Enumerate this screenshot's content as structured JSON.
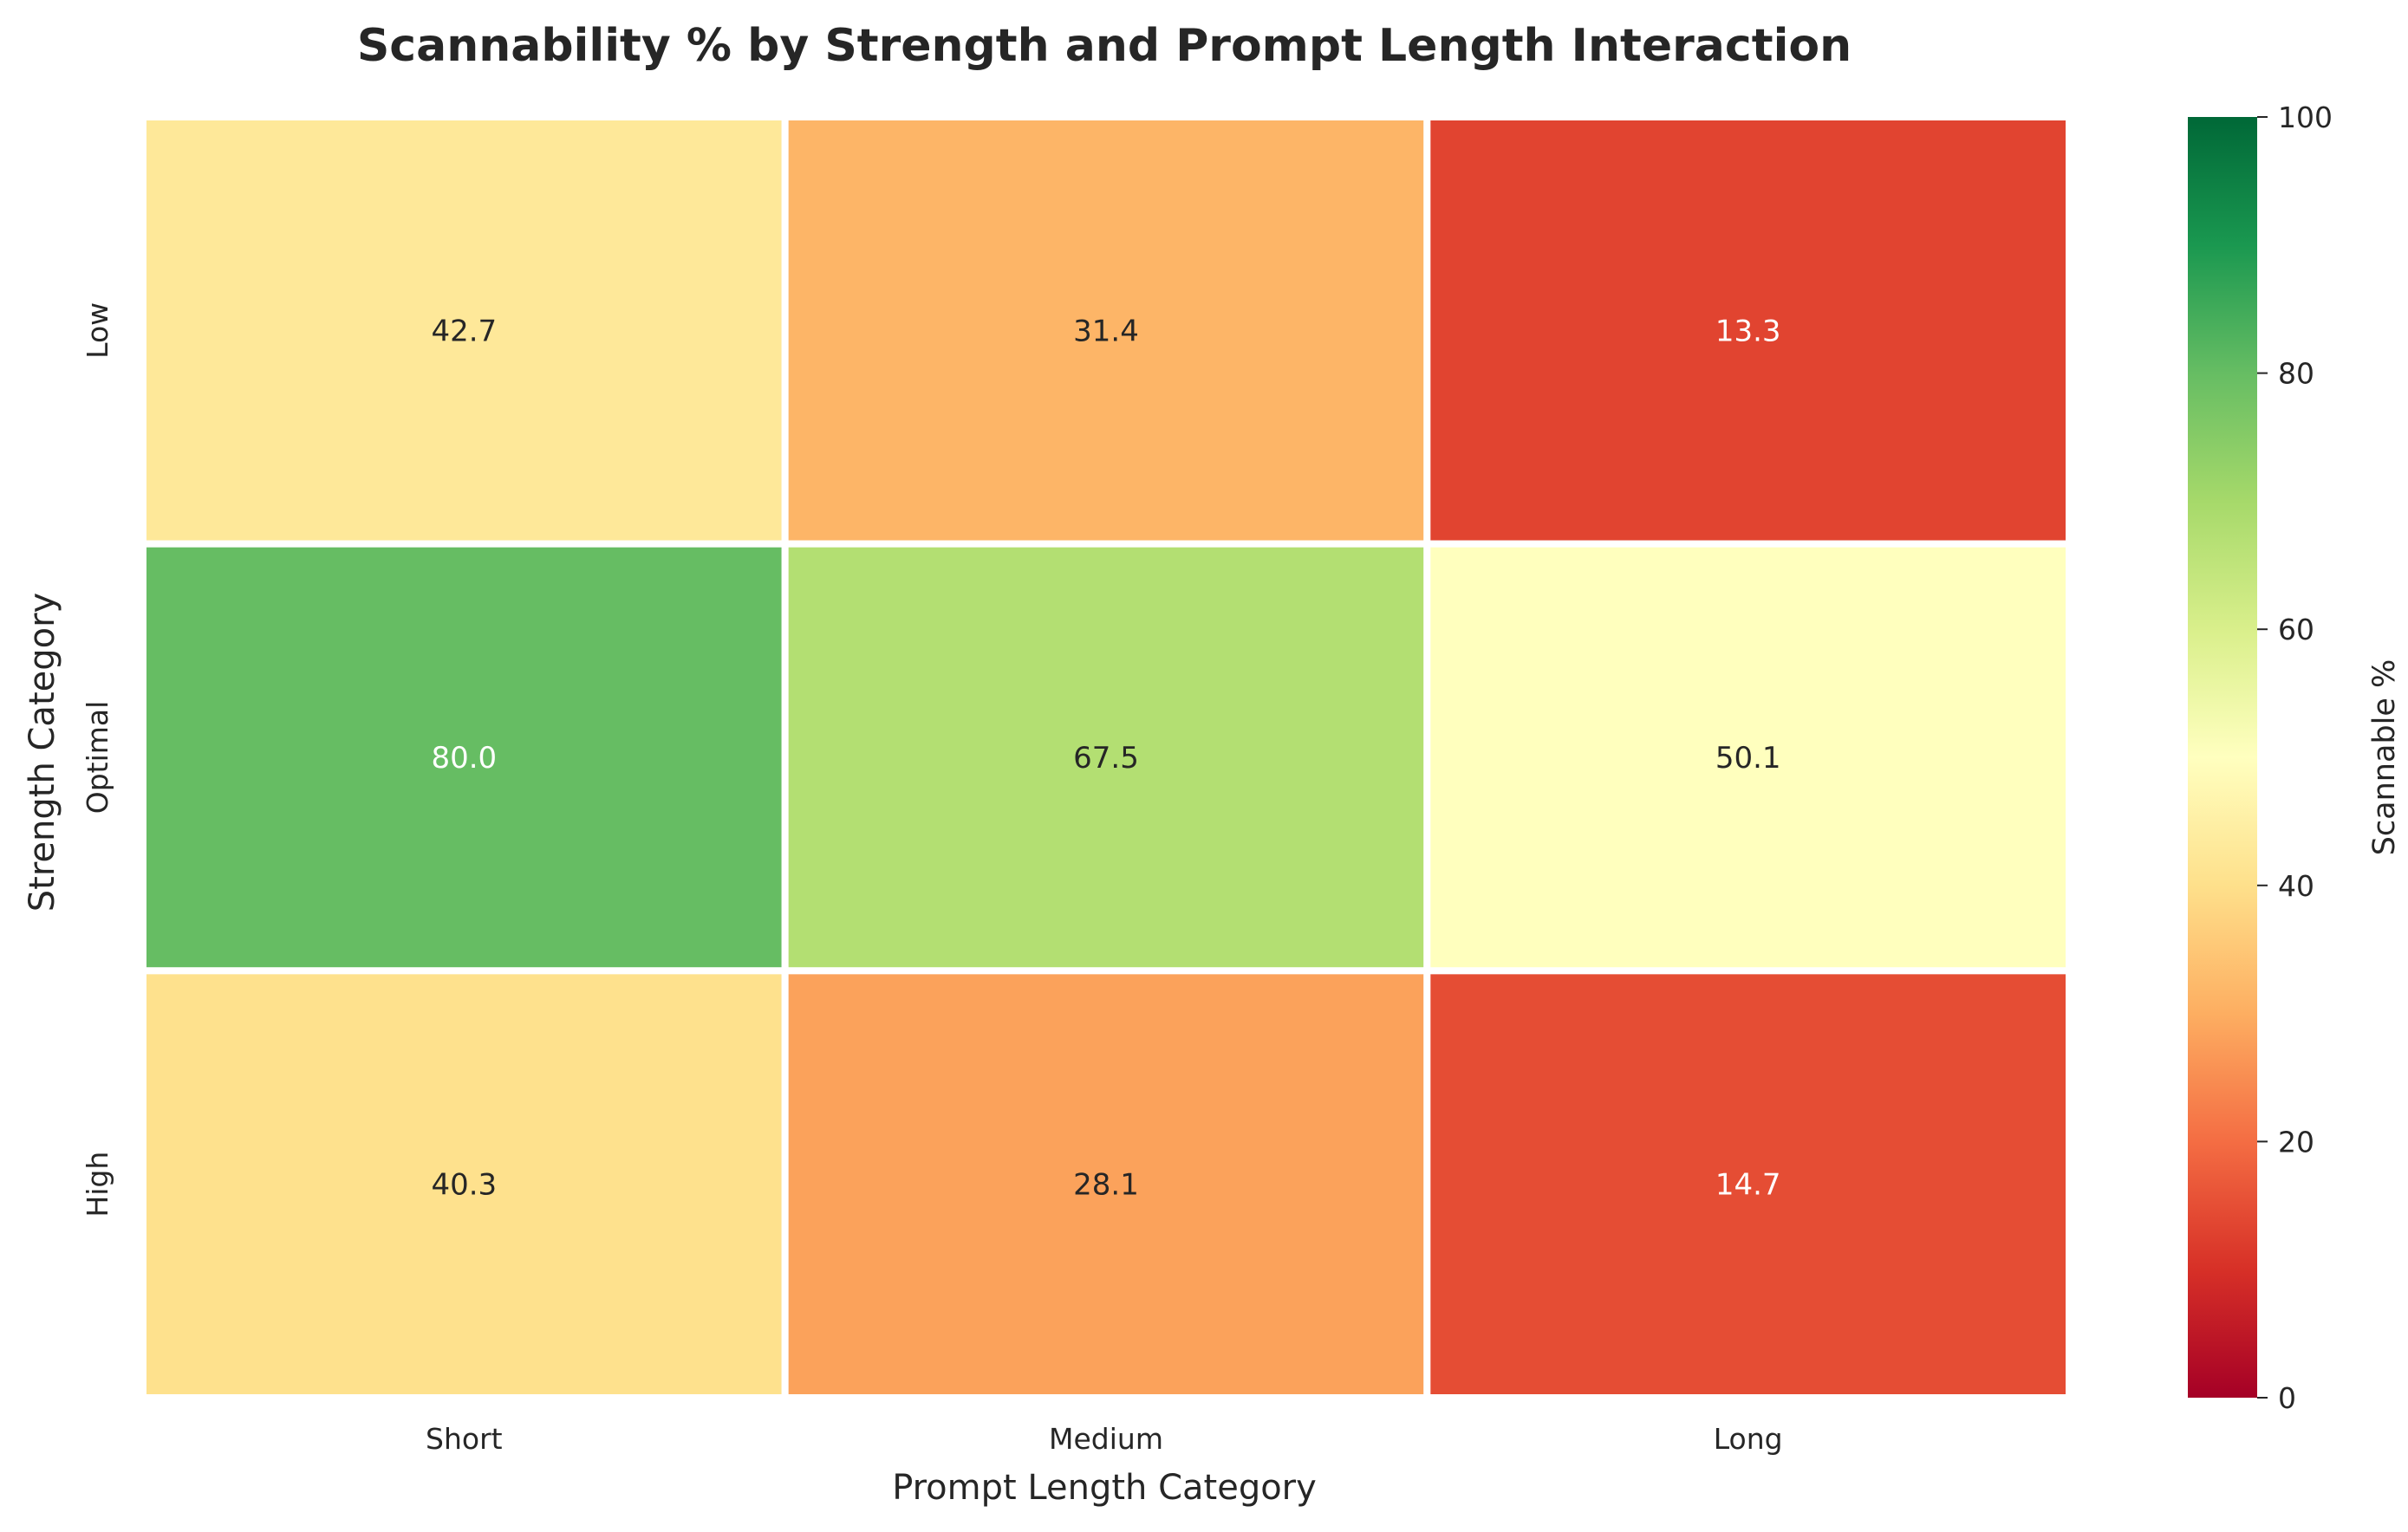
{
  "chart_data": {
    "type": "heatmap",
    "title": "Scannability % by Strength and Prompt Length Interaction",
    "xlabel": "Prompt Length Category",
    "ylabel": "Strength Category",
    "x_categories": [
      "Short",
      "Medium",
      "Long"
    ],
    "y_categories": [
      "Low",
      "Optimal",
      "High"
    ],
    "values": [
      [
        42.7,
        31.4,
        13.3
      ],
      [
        80.0,
        67.5,
        50.1
      ],
      [
        40.3,
        28.1,
        14.7
      ]
    ],
    "value_labels": [
      [
        "42.7",
        "31.4",
        "13.3"
      ],
      [
        "80.0",
        "67.5",
        "50.1"
      ],
      [
        "40.3",
        "28.1",
        "14.7"
      ]
    ],
    "colormap": "RdYlGn",
    "vmin": 0,
    "vmax": 100,
    "colorbar": {
      "label": "Scannable %",
      "ticks": [
        0,
        20,
        40,
        60,
        80,
        100
      ],
      "tick_labels": [
        "0",
        "20",
        "40",
        "60",
        "80",
        "100"
      ]
    }
  }
}
